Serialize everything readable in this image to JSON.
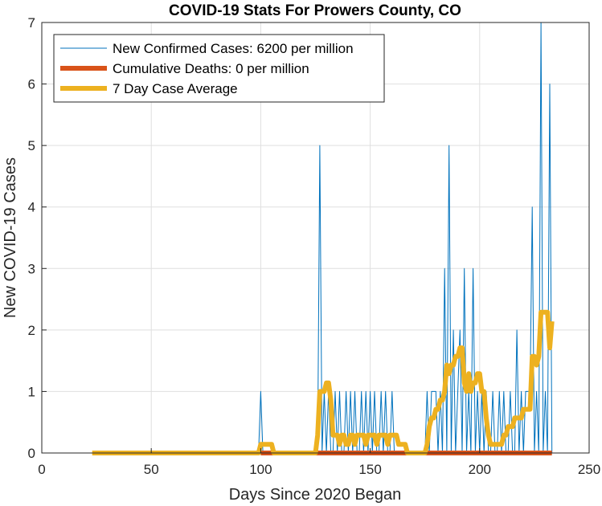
{
  "chart_data": {
    "type": "line",
    "title": "COVID-19 Stats For Prowers County, CO",
    "xlabel": "Days Since 2020 Began",
    "ylabel": "New COVID-19 Cases",
    "xlim": [
      0,
      250
    ],
    "ylim": [
      0,
      7
    ],
    "xticks": [
      0,
      50,
      100,
      150,
      200,
      250
    ],
    "yticks": [
      0,
      1,
      2,
      3,
      4,
      5,
      6,
      7
    ],
    "grid": true,
    "legend_position": "top-left",
    "colors": {
      "new_cases": "#0072BD",
      "deaths": "#D95319",
      "average": "#EDB120"
    },
    "series": [
      {
        "name": "New Confirmed Cases: 6200 per million",
        "style": "thin",
        "x": [
          23,
          99,
          100,
          101,
          125,
          126,
          127,
          128,
          129,
          130,
          131,
          132,
          133,
          134,
          135,
          136,
          137,
          138,
          139,
          140,
          141,
          142,
          143,
          144,
          145,
          146,
          147,
          148,
          149,
          150,
          151,
          152,
          153,
          154,
          155,
          156,
          157,
          158,
          159,
          160,
          161,
          175,
          176,
          177,
          178,
          179,
          180,
          181,
          182,
          183,
          184,
          185,
          186,
          187,
          188,
          189,
          190,
          191,
          192,
          193,
          194,
          195,
          196,
          197,
          198,
          199,
          200,
          201,
          202,
          203,
          204,
          205,
          206,
          207,
          208,
          209,
          210,
          211,
          212,
          213,
          214,
          215,
          216,
          217,
          218,
          219,
          220,
          221,
          222,
          223,
          224,
          225,
          226,
          227,
          228,
          229,
          230,
          231,
          232,
          233
        ],
        "values": [
          0,
          0,
          1,
          0,
          0,
          0,
          5,
          0,
          1,
          0,
          1,
          0,
          0,
          1,
          0,
          1,
          0,
          0,
          1,
          0,
          1,
          0,
          1,
          0,
          0,
          1,
          0,
          1,
          0,
          1,
          0,
          1,
          0,
          0,
          1,
          0,
          1,
          0,
          0,
          1,
          0,
          0,
          1,
          0,
          1,
          1,
          1,
          0,
          1,
          0,
          3,
          0,
          5,
          0,
          2,
          0,
          1,
          2,
          0,
          3,
          0,
          1,
          0,
          3,
          0,
          1,
          0,
          1,
          0,
          1,
          0,
          0,
          1,
          0,
          0,
          1,
          0,
          1,
          0,
          0,
          1,
          0,
          0,
          2,
          0,
          1,
          0,
          1,
          1,
          1,
          4,
          0,
          1,
          0,
          7,
          0,
          1,
          0,
          6,
          0
        ]
      },
      {
        "name": "Cumulative Deaths: 0 per million",
        "style": "medium",
        "x": [
          100,
          233
        ],
        "values": [
          0,
          0
        ]
      },
      {
        "name": "7 Day Case Average",
        "style": "thick",
        "x": [
          23,
          99,
          100,
          101,
          102,
          103,
          104,
          105,
          106,
          107,
          124,
          125,
          126,
          127,
          128,
          129,
          130,
          131,
          132,
          133,
          134,
          135,
          136,
          137,
          138,
          139,
          140,
          141,
          142,
          143,
          144,
          145,
          146,
          147,
          148,
          149,
          150,
          151,
          152,
          153,
          154,
          155,
          156,
          157,
          158,
          159,
          160,
          161,
          162,
          163,
          164,
          165,
          166,
          167,
          175,
          176,
          177,
          178,
          179,
          180,
          181,
          182,
          183,
          184,
          185,
          186,
          187,
          188,
          189,
          190,
          191,
          192,
          193,
          194,
          195,
          196,
          197,
          198,
          199,
          200,
          201,
          202,
          203,
          204,
          205,
          206,
          207,
          208,
          209,
          210,
          211,
          212,
          213,
          214,
          215,
          216,
          217,
          218,
          219,
          220,
          221,
          222,
          223,
          224,
          225,
          226,
          227,
          228,
          229,
          230,
          231,
          232,
          233
        ],
        "values": [
          0,
          0,
          0.14,
          0.14,
          0.14,
          0.14,
          0.14,
          0.14,
          0,
          0,
          0,
          0,
          0.29,
          1.0,
          1.0,
          1.0,
          1.14,
          1.14,
          0.86,
          0.29,
          0.29,
          0.29,
          0.14,
          0.29,
          0.29,
          0.14,
          0.14,
          0.29,
          0.29,
          0.14,
          0.29,
          0.29,
          0.29,
          0.29,
          0.14,
          0.29,
          0.29,
          0.29,
          0.29,
          0.14,
          0.29,
          0.29,
          0.29,
          0.29,
          0.14,
          0.29,
          0.29,
          0.29,
          0.29,
          0.14,
          0.14,
          0.14,
          0.14,
          0,
          0,
          0.14,
          0.43,
          0.57,
          0.57,
          0.71,
          0.71,
          0.86,
          0.86,
          1.0,
          1.43,
          1.29,
          1.43,
          1.43,
          1.57,
          1.57,
          1.71,
          1.71,
          1.14,
          1.0,
          1.29,
          1.0,
          1.14,
          1.14,
          1.29,
          1.29,
          1.0,
          1.0,
          0.57,
          0.29,
          0.14,
          0.14,
          0.14,
          0.14,
          0.14,
          0.14,
          0.29,
          0.29,
          0.43,
          0.43,
          0.43,
          0.57,
          0.57,
          0.57,
          0.57,
          0.71,
          0.71,
          0.71,
          0.71,
          1.57,
          1.57,
          1.43,
          1.57,
          2.29,
          2.29,
          2.29,
          2.29,
          1.71,
          2.14
        ]
      }
    ]
  }
}
